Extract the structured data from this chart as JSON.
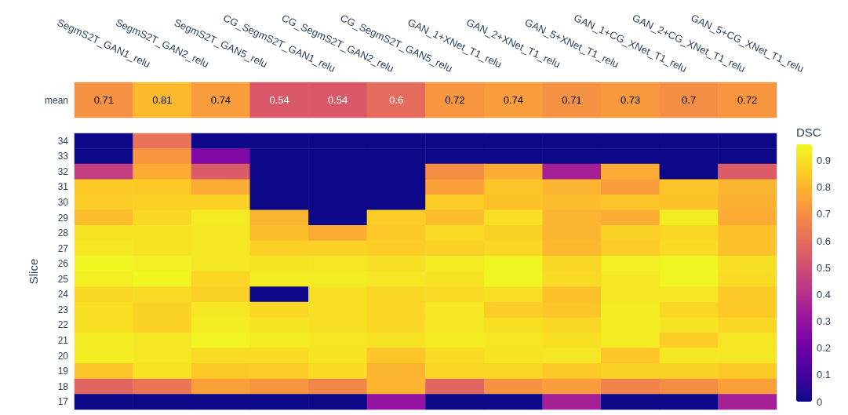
{
  "chart_data": [
    {
      "type": "heatmap",
      "categories": [
        "SegmS2T_GAN1_relu",
        "SegmS2T_GAN2_relu",
        "SegmS2T_GAN5_relu",
        "CG_SegmS2T_GAN1_relu",
        "CG_SegmS2T_GAN2_relu",
        "CG_SegmS2T_GAN5_relu",
        "GAN_1+XNet_T1_relu",
        "GAN_2+XNet_T1_relu",
        "GAN_5+XNet_T1_relu",
        "GAN_1+CG_XNet_T1_relu",
        "GAN_2+CG_XNet_T1_relu",
        "GAN_5+CG_XNet_T1_relu"
      ],
      "y_categories": [
        "mean"
      ],
      "cells": [
        [
          0.71,
          0.81,
          0.74,
          0.54,
          0.54,
          0.6,
          0.72,
          0.74,
          0.71,
          0.73,
          0.7,
          0.72
        ]
      ],
      "data_labels": true
    },
    {
      "type": "heatmap",
      "categories": [
        null,
        null,
        null,
        null,
        null,
        null,
        null,
        null,
        null,
        null,
        null,
        null
      ],
      "y_categories": [
        "34",
        "33",
        "32",
        "31",
        "30",
        "29",
        "28",
        "27",
        "26",
        "25",
        "24",
        "23",
        "22",
        "21",
        "20",
        "19",
        "18",
        "17"
      ],
      "ylabel": "Slice",
      "clabel": "DSC",
      "clim": [
        0,
        0.96
      ],
      "cticks": [
        0,
        0.1,
        0.2,
        0.3,
        0.4,
        0.5,
        0.6,
        0.7,
        0.8,
        0.9
      ],
      "tick_labels": "y",
      "cells": [
        [
          0,
          0.62,
          0,
          0,
          0,
          0,
          0,
          0,
          0,
          0,
          0,
          0
        ],
        [
          0,
          0.72,
          0.25,
          0,
          0,
          0,
          0,
          0,
          0,
          0,
          0,
          0
        ],
        [
          0.45,
          0.78,
          0.55,
          0,
          0,
          0,
          0.7,
          0.78,
          0.35,
          0.78,
          0,
          0.55
        ],
        [
          0.85,
          0.85,
          0.78,
          0,
          0,
          0,
          0.75,
          0.84,
          0.8,
          0.74,
          0.84,
          0.8
        ],
        [
          0.86,
          0.87,
          0.87,
          0,
          0,
          0,
          0.86,
          0.83,
          0.82,
          0.84,
          0.83,
          0.79
        ],
        [
          0.82,
          0.88,
          0.93,
          0.8,
          0,
          0.86,
          0.82,
          0.9,
          0.8,
          0.78,
          0.93,
          0.78
        ],
        [
          0.91,
          0.91,
          0.92,
          0.82,
          0.78,
          0.85,
          0.89,
          0.87,
          0.8,
          0.87,
          0.88,
          0.83
        ],
        [
          0.92,
          0.91,
          0.92,
          0.87,
          0.87,
          0.86,
          0.87,
          0.88,
          0.81,
          0.86,
          0.89,
          0.83
        ],
        [
          0.95,
          0.94,
          0.92,
          0.91,
          0.92,
          0.9,
          0.93,
          0.95,
          0.88,
          0.94,
          0.95,
          0.9
        ],
        [
          0.94,
          0.95,
          0.88,
          0.93,
          0.93,
          0.92,
          0.91,
          0.95,
          0.89,
          0.92,
          0.95,
          0.89
        ],
        [
          0.88,
          0.89,
          0.87,
          0,
          0.9,
          0.88,
          0.89,
          0.9,
          0.83,
          0.92,
          0.92,
          0.85
        ],
        [
          0.9,
          0.87,
          0.92,
          0.88,
          0.9,
          0.88,
          0.92,
          0.86,
          0.84,
          0.93,
          0.88,
          0.85
        ],
        [
          0.9,
          0.87,
          0.93,
          0.91,
          0.9,
          0.88,
          0.92,
          0.9,
          0.88,
          0.93,
          0.91,
          0.88
        ],
        [
          0.93,
          0.92,
          0.95,
          0.93,
          0.92,
          0.91,
          0.93,
          0.92,
          0.9,
          0.93,
          0.86,
          0.92
        ],
        [
          0.93,
          0.92,
          0.89,
          0.89,
          0.91,
          0.84,
          0.89,
          0.91,
          0.92,
          0.84,
          0.92,
          0.92
        ],
        [
          0.84,
          0.91,
          0.85,
          0.86,
          0.89,
          0.8,
          0.88,
          0.88,
          0.85,
          0.87,
          0.87,
          0.85
        ],
        [
          0.58,
          0.63,
          0.75,
          0.72,
          0.68,
          0.8,
          0.58,
          0.71,
          0.74,
          0.67,
          0.7,
          0.75
        ],
        [
          0,
          0,
          0,
          0,
          0,
          0.3,
          0,
          0,
          0.35,
          0,
          0,
          0.35
        ]
      ]
    }
  ]
}
